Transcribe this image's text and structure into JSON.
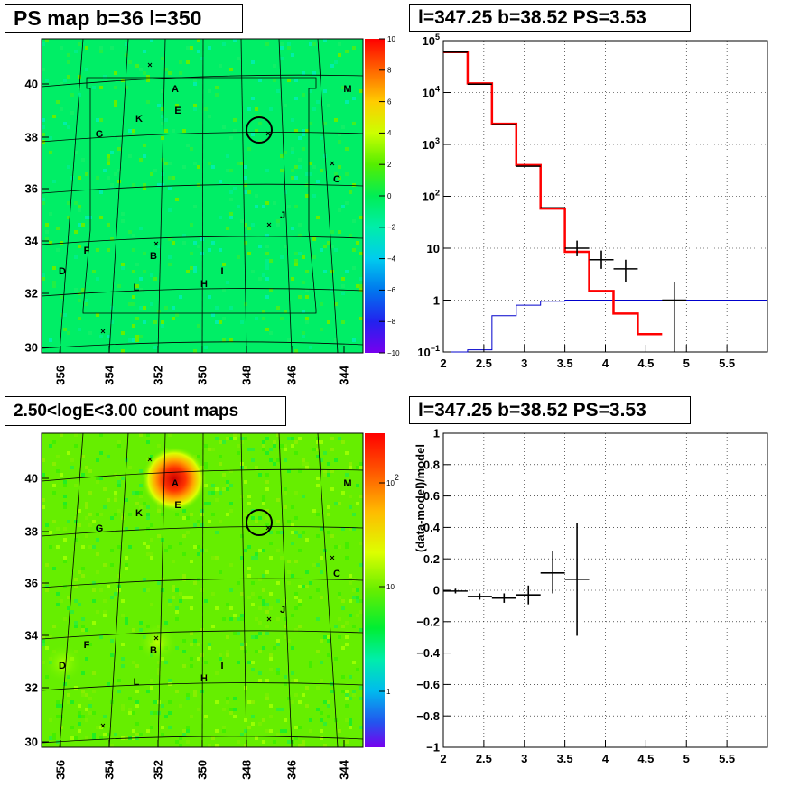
{
  "titles": {
    "ps_map": "PS map b=36 l=350",
    "spectrum": "l=347.25 b=38.52 PS=3.53",
    "count_map": "2.50<logE<3.00 count maps",
    "residual": "l=347.25 b=38.52 PS=3.53"
  },
  "source_labels": [
    "A",
    "B",
    "C",
    "D",
    "E",
    "F",
    "G",
    "H",
    "I",
    "J",
    "K",
    "M",
    "L"
  ],
  "chart_data": [
    {
      "type": "heatmap",
      "title": "PS map b=36 l=350",
      "x_ticks": [
        "356",
        "354",
        "352",
        "350",
        "348",
        "346",
        "344"
      ],
      "y_ticks": [
        "40",
        "38",
        "36",
        "34",
        "32",
        "30"
      ],
      "colorbar_ticks": [
        "10",
        "8",
        "6",
        "4",
        "2",
        "0",
        "−2",
        "−4",
        "−6",
        "−8",
        "−10"
      ],
      "colorbar_range": [
        -10,
        10
      ],
      "dominant_value": "≈0 to 2 (uniform green)"
    },
    {
      "type": "line",
      "title": "l=347.25 b=38.52 PS=3.53",
      "xlim": [
        2,
        6
      ],
      "ylim_log": [
        0.1,
        100000
      ],
      "log_y": true,
      "grid": true,
      "x_ticks": [
        "2",
        "2.5",
        "3",
        "3.5",
        "4",
        "4.5",
        "5",
        "5.5"
      ],
      "y_ticks": [
        "10^5",
        "10^4",
        "10^3",
        "10^2",
        "10",
        "1",
        "10^-1"
      ],
      "y_tick_values": [
        100000,
        10000,
        1000,
        100,
        10,
        1,
        0.1
      ],
      "bin_edges": [
        2.0,
        2.3,
        2.6,
        2.9,
        3.2,
        3.5,
        3.8,
        4.1,
        4.4,
        4.7,
        5.0,
        5.3,
        5.6,
        5.9,
        6.0
      ],
      "series": [
        {
          "color": "#ff0000",
          "values": [
            60000,
            15000,
            2500,
            400,
            58,
            8.5,
            1.5,
            0.55,
            0.22,
            0.1,
            0.1,
            0.1,
            0.1,
            0.1
          ]
        },
        {
          "color": "#0000cc",
          "values": [
            0.1,
            0.11,
            0.5,
            0.8,
            0.95,
            1.0,
            1.0,
            1.0,
            1.0,
            1.0,
            1.0,
            1.0,
            1.0,
            1.0
          ]
        },
        {
          "color": "#000000",
          "values": [
            60000,
            14500,
            2400,
            380,
            60,
            10,
            6,
            4,
            null,
            1.0,
            null,
            null,
            null,
            null
          ]
        }
      ],
      "data_points": [
        {
          "x": 3.65,
          "y": 10,
          "ylo": 7,
          "yhi": 14,
          "xerr": 0.15
        },
        {
          "x": 3.95,
          "y": 6,
          "ylo": 4,
          "yhi": 9,
          "xerr": 0.15
        },
        {
          "x": 4.25,
          "y": 4,
          "ylo": 2.2,
          "yhi": 6,
          "xerr": 0.15
        },
        {
          "x": 4.85,
          "y": 1.0,
          "ylo": 0.1,
          "yhi": 2.2,
          "xerr": 0.15
        }
      ]
    },
    {
      "type": "heatmap",
      "title": "2.50<logE<3.00 count maps",
      "x_ticks": [
        "356",
        "354",
        "352",
        "350",
        "348",
        "346",
        "344"
      ],
      "y_ticks": [
        "40",
        "38",
        "36",
        "34",
        "32",
        "30"
      ],
      "colorbar_ticks": [
        "10^2",
        "10",
        "1"
      ],
      "colorbar_log": true,
      "hotspot": "source A near l=351.2 b=39.8"
    },
    {
      "type": "scatter",
      "title": "l=347.25 b=38.52 PS=3.53",
      "ylabel": "(data-model)/model",
      "xlim": [
        2,
        6
      ],
      "ylim": [
        -1,
        1
      ],
      "grid": true,
      "x_ticks": [
        "2",
        "2.5",
        "3",
        "3.5",
        "4",
        "4.5",
        "5",
        "5.5"
      ],
      "y_ticks": [
        "1",
        "0.8",
        "0.6",
        "0.4",
        "0.2",
        "0",
        "−0.2",
        "−0.4",
        "−0.6",
        "−0.8",
        "−1"
      ],
      "y_tick_values": [
        1,
        0.8,
        0.6,
        0.4,
        0.2,
        0,
        -0.2,
        -0.4,
        -0.6,
        -0.8,
        -1
      ],
      "points": [
        {
          "x": 2.15,
          "y": -0.005,
          "ylo": -0.02,
          "yhi": 0.01,
          "xerr": 0.15
        },
        {
          "x": 2.45,
          "y": -0.04,
          "ylo": -0.06,
          "yhi": -0.02,
          "xerr": 0.15
        },
        {
          "x": 2.75,
          "y": -0.05,
          "ylo": -0.08,
          "yhi": -0.02,
          "xerr": 0.15
        },
        {
          "x": 3.05,
          "y": -0.03,
          "ylo": -0.09,
          "yhi": 0.03,
          "xerr": 0.15
        },
        {
          "x": 3.35,
          "y": 0.11,
          "ylo": -0.02,
          "yhi": 0.25,
          "xerr": 0.15
        },
        {
          "x": 3.65,
          "y": 0.07,
          "ylo": -0.29,
          "yhi": 0.43,
          "xerr": 0.15
        }
      ]
    }
  ]
}
